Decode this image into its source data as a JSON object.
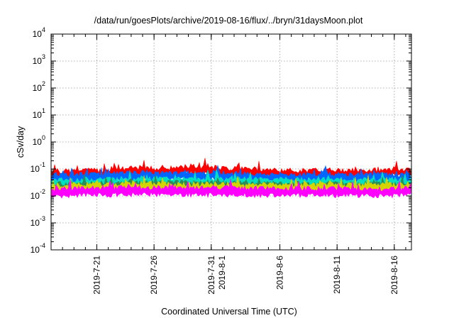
{
  "chart_data": {
    "type": "area",
    "title": "/data/run/goesPlots/archive/2019-08-16/flux/../bryn/31daysMoon.plot",
    "xlabel": "Coordinated Universal Time (UTC)",
    "ylabel": "cSv/day",
    "yscale": "log",
    "ylim": [
      0.0001,
      10000
    ],
    "yticks": [
      {
        "base": "10",
        "exp": "4"
      },
      {
        "base": "10",
        "exp": "3"
      },
      {
        "base": "10",
        "exp": "2"
      },
      {
        "base": "10",
        "exp": "1"
      },
      {
        "base": "10",
        "exp": "0"
      },
      {
        "base": "10",
        "exp": "-1"
      },
      {
        "base": "10",
        "exp": "-2"
      },
      {
        "base": "10",
        "exp": "-3"
      },
      {
        "base": "10",
        "exp": "-4"
      }
    ],
    "xlim": [
      "2019-07-17",
      "2019-08-17 12:00"
    ],
    "xticks": [
      {
        "date": "2019-07-21",
        "labels": [
          "2019-7-21"
        ]
      },
      {
        "date": "2019-07-26",
        "labels": [
          "2019-7-26"
        ]
      },
      {
        "date": "2019-07-31",
        "labels": [
          "2019-7-31",
          "2019-8-1"
        ]
      },
      {
        "date": "2019-08-06",
        "labels": [
          "2019-8-6"
        ]
      },
      {
        "date": "2019-08-11",
        "labels": [
          "2019-8-11"
        ]
      },
      {
        "date": "2019-08-16",
        "labels": [
          "2019-8-16"
        ]
      }
    ],
    "grid": true,
    "x_dates": [
      "2019-07-17",
      "2019-07-19",
      "2019-07-21",
      "2019-07-23",
      "2019-07-25",
      "2019-07-27",
      "2019-07-29",
      "2019-07-31",
      "2019-08-02",
      "2019-08-04",
      "2019-08-06",
      "2019-08-08",
      "2019-08-10",
      "2019-08-12",
      "2019-08-14",
      "2019-08-16",
      "2019-08-17"
    ],
    "series": [
      {
        "color": "#ff0000",
        "values": [
          0.06,
          0.07,
          0.07,
          0.08,
          0.09,
          0.08,
          0.1,
          0.09,
          0.08,
          0.08,
          0.07,
          0.07,
          0.07,
          0.07,
          0.07,
          0.08,
          0.08
        ]
      },
      {
        "color": "#0066ff",
        "values": [
          0.045,
          0.05,
          0.05,
          0.055,
          0.06,
          0.055,
          0.06,
          0.06,
          0.055,
          0.05,
          0.05,
          0.05,
          0.05,
          0.05,
          0.05,
          0.05,
          0.05
        ]
      },
      {
        "color": "#00e0c0",
        "values": [
          0.03,
          0.032,
          0.034,
          0.035,
          0.036,
          0.035,
          0.036,
          0.035,
          0.034,
          0.033,
          0.033,
          0.032,
          0.032,
          0.032,
          0.032,
          0.033,
          0.033
        ]
      },
      {
        "color": "#2e8b57",
        "values": [
          0.022,
          0.023,
          0.024,
          0.025,
          0.025,
          0.025,
          0.025,
          0.025,
          0.024,
          0.024,
          0.023,
          0.023,
          0.023,
          0.023,
          0.023,
          0.023,
          0.023
        ]
      },
      {
        "color": "#d4d400",
        "values": [
          0.02,
          0.021,
          0.022,
          0.022,
          0.023,
          0.022,
          0.022,
          0.022,
          0.022,
          0.021,
          0.021,
          0.021,
          0.021,
          0.021,
          0.021,
          0.021,
          0.021
        ]
      },
      {
        "color": "#ff00ff",
        "values": [
          0.014,
          0.015,
          0.016,
          0.016,
          0.017,
          0.016,
          0.016,
          0.016,
          0.016,
          0.015,
          0.015,
          0.015,
          0.015,
          0.015,
          0.015,
          0.015,
          0.015
        ]
      }
    ]
  }
}
